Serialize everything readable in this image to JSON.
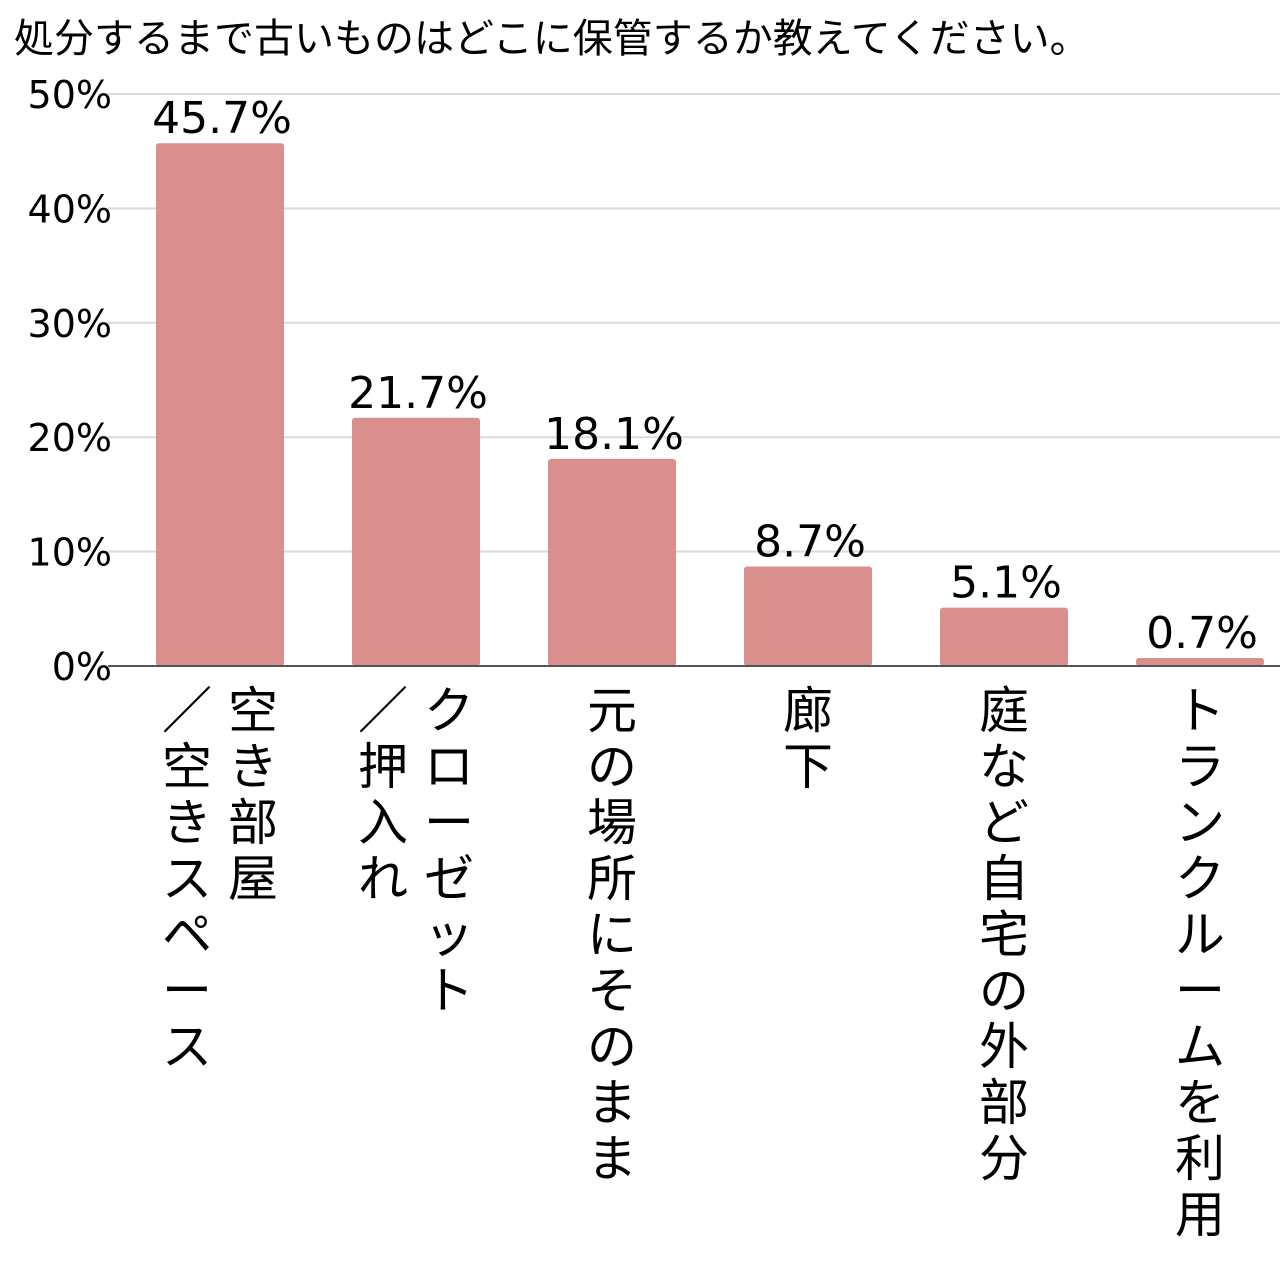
{
  "chart_data": {
    "type": "bar",
    "title": "処分するまで古いものはどこに保管するか教えてください。",
    "categories": [
      [
        "空き部屋",
        "／空きスペース"
      ],
      [
        "クローゼット",
        "／押入れ"
      ],
      [
        "元の場所にそのまま"
      ],
      [
        "廊下"
      ],
      [
        "庭など自宅の外部分"
      ],
      [
        "トランクルームを利用"
      ]
    ],
    "values": [
      45.7,
      21.7,
      18.1,
      8.7,
      5.1,
      0.7
    ],
    "value_labels": [
      "45.7%",
      "21.7%",
      "18.1%",
      "8.7%",
      "5.1%",
      "0.7%"
    ],
    "y_ticks": [
      {
        "value": 0,
        "label": "0%"
      },
      {
        "value": 10,
        "label": "10%"
      },
      {
        "value": 20,
        "label": "20%"
      },
      {
        "value": 30,
        "label": "30%"
      },
      {
        "value": 40,
        "label": "40%"
      },
      {
        "value": 50,
        "label": "50%"
      }
    ],
    "ylim": [
      0,
      50
    ],
    "xlabel": "",
    "ylabel": "",
    "grid": true,
    "legend": "none",
    "bar_color": "#d9908c",
    "grid_color": "#d9d9d9",
    "axis_color": "#555555"
  }
}
